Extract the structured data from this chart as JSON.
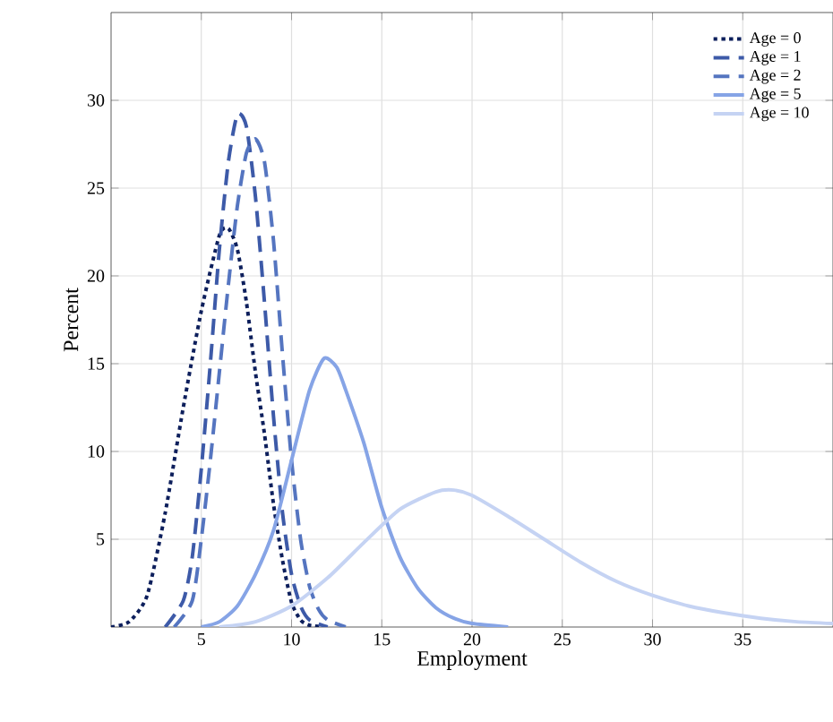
{
  "chart_data": {
    "type": "line",
    "xlabel": "Employment",
    "ylabel": "Percent",
    "xlim": [
      0,
      40
    ],
    "ylim": [
      0,
      35
    ],
    "xticks": [
      5,
      10,
      15,
      20,
      25,
      30,
      35
    ],
    "yticks": [
      5,
      10,
      15,
      20,
      25,
      30
    ],
    "grid": true,
    "legend": "top right",
    "series": [
      {
        "name": "Age = 0",
        "color": "#0d1f5c",
        "line_style": "dotted",
        "x": [
          0,
          1,
          2,
          3,
          4,
          5,
          6,
          6.5,
          7,
          7.5,
          8,
          8.5,
          9,
          9.5,
          10,
          10.5,
          11,
          12
        ],
        "values": [
          0,
          0.3,
          1.8,
          6.5,
          12.5,
          18,
          22.3,
          22.7,
          21.5,
          18.5,
          14.5,
          11,
          7,
          3.8,
          1.4,
          0.4,
          0.1,
          0
        ]
      },
      {
        "name": "Age = 1",
        "color": "#3d5aa8",
        "line_style": "dashed",
        "x": [
          3,
          4,
          4.5,
          5,
          5.5,
          6,
          6.5,
          7,
          7.5,
          8,
          8.5,
          9,
          9.5,
          10,
          10.5,
          11,
          12
        ],
        "values": [
          0,
          1.5,
          4,
          9,
          15,
          21.5,
          26.5,
          29.2,
          28.5,
          24.5,
          18.5,
          12,
          6.5,
          3,
          1.2,
          0.4,
          0
        ]
      },
      {
        "name": "Age = 2",
        "color": "#5575c0",
        "line_style": "dashed",
        "x": [
          3.5,
          4.5,
          5,
          5.5,
          6,
          6.5,
          7,
          7.5,
          8,
          8.5,
          9,
          9.5,
          10,
          10.5,
          11,
          11.5,
          12,
          13
        ],
        "values": [
          0,
          1.5,
          5,
          9.5,
          14.5,
          19.5,
          24,
          27,
          27.8,
          26.5,
          22,
          15.5,
          9.5,
          5,
          2.3,
          1,
          0.4,
          0
        ]
      },
      {
        "name": "Age = 5",
        "color": "#86a4e6",
        "line_style": "solid",
        "x": [
          5,
          6,
          7,
          8,
          9,
          10,
          11,
          11.8,
          12.5,
          13,
          14,
          15,
          16,
          17,
          18,
          19,
          20,
          22
        ],
        "values": [
          0,
          0.3,
          1.2,
          3,
          5.5,
          9.5,
          13.5,
          15.3,
          14.8,
          13.5,
          10.5,
          6.8,
          4,
          2.2,
          1.1,
          0.5,
          0.2,
          0
        ]
      },
      {
        "name": "Age = 10",
        "color": "#c5d3f3",
        "line_style": "solid",
        "x": [
          6,
          8,
          10,
          12,
          14,
          16,
          18,
          19,
          20,
          22,
          24,
          26,
          28,
          30,
          32,
          34,
          36,
          38,
          40
        ],
        "values": [
          0,
          0.3,
          1.2,
          2.8,
          4.8,
          6.7,
          7.7,
          7.8,
          7.5,
          6.3,
          5.0,
          3.7,
          2.6,
          1.8,
          1.2,
          0.8,
          0.5,
          0.3,
          0.2
        ]
      }
    ]
  }
}
